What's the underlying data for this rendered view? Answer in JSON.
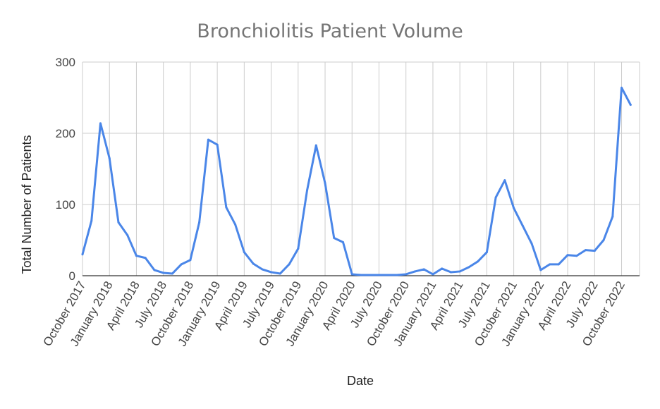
{
  "chart_data": {
    "type": "line",
    "title": "Bronchiolitis Patient Volume",
    "xlabel": "Date",
    "ylabel": "Total Number of Patients",
    "ylim": [
      0,
      300
    ],
    "yticks": [
      0,
      100,
      200,
      300
    ],
    "xlim": [
      "2017-10",
      "2022-12"
    ],
    "grid": true,
    "legend": "none",
    "colors": {
      "line": "#4a86e8"
    },
    "x_ticks": [
      {
        "label": "October 2017",
        "date": "2017-10"
      },
      {
        "label": "January 2018",
        "date": "2018-01"
      },
      {
        "label": "April 2018",
        "date": "2018-04"
      },
      {
        "label": "July 2018",
        "date": "2018-07"
      },
      {
        "label": "October 2018",
        "date": "2018-10"
      },
      {
        "label": "January 2019",
        "date": "2019-01"
      },
      {
        "label": "April 2019",
        "date": "2019-04"
      },
      {
        "label": "July 2019",
        "date": "2019-07"
      },
      {
        "label": "October 2019",
        "date": "2019-10"
      },
      {
        "label": "January 2020",
        "date": "2020-01"
      },
      {
        "label": "April 2020",
        "date": "2020-04"
      },
      {
        "label": "July 2020",
        "date": "2020-07"
      },
      {
        "label": "October 2020",
        "date": "2020-10"
      },
      {
        "label": "January 2021",
        "date": "2021-01"
      },
      {
        "label": "April 2021",
        "date": "2021-04"
      },
      {
        "label": "July 2021",
        "date": "2021-07"
      },
      {
        "label": "October 2021",
        "date": "2021-10"
      },
      {
        "label": "January 2022",
        "date": "2022-01"
      },
      {
        "label": "April 2022",
        "date": "2022-04"
      },
      {
        "label": "July 2022",
        "date": "2022-07"
      },
      {
        "label": "October 2022",
        "date": "2022-10"
      }
    ],
    "series": [
      {
        "points": [
          [
            "2017-10",
            30
          ],
          [
            "2017-11",
            77
          ],
          [
            "2017-12",
            214
          ],
          [
            "2018-01",
            165
          ],
          [
            "2018-02",
            75
          ],
          [
            "2018-03",
            57
          ],
          [
            "2018-04",
            28
          ],
          [
            "2018-05",
            25
          ],
          [
            "2018-06",
            8
          ],
          [
            "2018-07",
            4
          ],
          [
            "2018-08",
            3
          ],
          [
            "2018-09",
            16
          ],
          [
            "2018-10",
            22
          ],
          [
            "2018-11",
            75
          ],
          [
            "2018-12",
            191
          ],
          [
            "2019-01",
            184
          ],
          [
            "2019-02",
            96
          ],
          [
            "2019-03",
            72
          ],
          [
            "2019-04",
            33
          ],
          [
            "2019-05",
            17
          ],
          [
            "2019-06",
            9
          ],
          [
            "2019-07",
            5
          ],
          [
            "2019-08",
            3
          ],
          [
            "2019-09",
            16
          ],
          [
            "2019-10",
            38
          ],
          [
            "2019-11",
            120
          ],
          [
            "2019-12",
            183
          ],
          [
            "2020-01",
            130
          ],
          [
            "2020-02",
            53
          ],
          [
            "2020-03",
            47
          ],
          [
            "2020-04",
            2
          ],
          [
            "2020-05",
            1
          ],
          [
            "2020-06",
            1
          ],
          [
            "2020-07",
            1
          ],
          [
            "2020-08",
            1
          ],
          [
            "2020-09",
            1
          ],
          [
            "2020-10",
            2
          ],
          [
            "2020-11",
            6
          ],
          [
            "2020-12",
            9
          ],
          [
            "2021-01",
            2
          ],
          [
            "2021-02",
            10
          ],
          [
            "2021-03",
            5
          ],
          [
            "2021-04",
            6
          ],
          [
            "2021-05",
            12
          ],
          [
            "2021-06",
            20
          ],
          [
            "2021-07",
            33
          ],
          [
            "2021-08",
            110
          ],
          [
            "2021-09",
            134
          ],
          [
            "2021-10",
            95
          ],
          [
            "2021-11",
            70
          ],
          [
            "2021-12",
            45
          ],
          [
            "2022-01",
            8
          ],
          [
            "2022-02",
            16
          ],
          [
            "2022-03",
            16
          ],
          [
            "2022-04",
            29
          ],
          [
            "2022-05",
            28
          ],
          [
            "2022-06",
            36
          ],
          [
            "2022-07",
            35
          ],
          [
            "2022-08",
            50
          ],
          [
            "2022-09",
            83
          ],
          [
            "2022-10",
            264
          ],
          [
            "2022-11",
            240
          ]
        ]
      }
    ]
  }
}
